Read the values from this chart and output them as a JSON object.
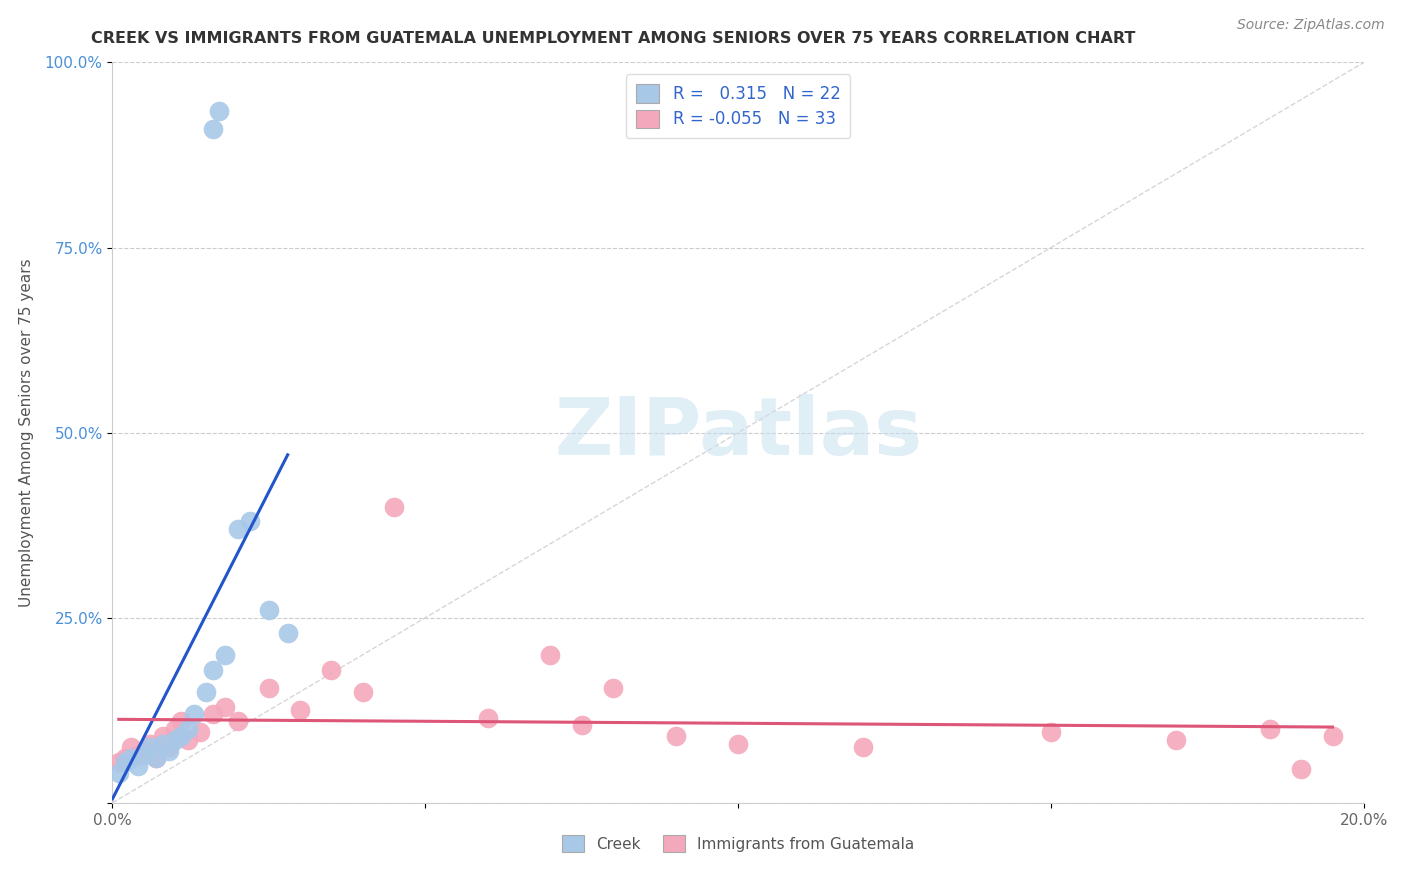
{
  "title": "CREEK VS IMMIGRANTS FROM GUATEMALA UNEMPLOYMENT AMONG SENIORS OVER 75 YEARS CORRELATION CHART",
  "source": "Source: ZipAtlas.com",
  "ylabel": "Unemployment Among Seniors over 75 years",
  "xlim": [
    0.0,
    0.2
  ],
  "ylim": [
    0.0,
    1.0
  ],
  "xticks": [
    0.0,
    0.05,
    0.1,
    0.15,
    0.2
  ],
  "xticklabels": [
    "0.0%",
    "",
    "",
    "",
    "20.0%"
  ],
  "yticks": [
    0.0,
    0.25,
    0.5,
    0.75,
    1.0
  ],
  "yticklabels": [
    "",
    "25.0%",
    "50.0%",
    "75.0%",
    "100.0%"
  ],
  "creek_color": "#a8c8e8",
  "guatemala_color": "#f4a8bc",
  "creek_line_color": "#2255cc",
  "guatemala_line_color": "#dd5577",
  "ref_line_color": "#cccccc",
  "creek_R": 0.315,
  "creek_N": 22,
  "guatemala_R": -0.055,
  "guatemala_N": 33,
  "watermark_text": "ZIPatlas",
  "background_color": "#ffffff",
  "creek_x": [
    0.001,
    0.002,
    0.003,
    0.004,
    0.005,
    0.006,
    0.007,
    0.008,
    0.009,
    0.01,
    0.011,
    0.012,
    0.013,
    0.015,
    0.016,
    0.018,
    0.02,
    0.022,
    0.025,
    0.028,
    0.016,
    0.017
  ],
  "creek_y": [
    0.04,
    0.055,
    0.06,
    0.05,
    0.065,
    0.075,
    0.06,
    0.08,
    0.07,
    0.085,
    0.09,
    0.1,
    0.12,
    0.15,
    0.18,
    0.2,
    0.37,
    0.38,
    0.26,
    0.23,
    0.91,
    0.935
  ],
  "guatemala_x": [
    0.001,
    0.002,
    0.003,
    0.004,
    0.005,
    0.006,
    0.007,
    0.008,
    0.009,
    0.01,
    0.011,
    0.012,
    0.014,
    0.016,
    0.018,
    0.02,
    0.025,
    0.03,
    0.035,
    0.04,
    0.045,
    0.06,
    0.07,
    0.075,
    0.08,
    0.09,
    0.1,
    0.12,
    0.15,
    0.17,
    0.185,
    0.19,
    0.195
  ],
  "guatemala_y": [
    0.055,
    0.06,
    0.075,
    0.065,
    0.07,
    0.08,
    0.06,
    0.09,
    0.075,
    0.1,
    0.11,
    0.085,
    0.095,
    0.12,
    0.13,
    0.11,
    0.155,
    0.125,
    0.18,
    0.15,
    0.4,
    0.115,
    0.2,
    0.105,
    0.155,
    0.09,
    0.08,
    0.075,
    0.095,
    0.085,
    0.1,
    0.045,
    0.09
  ]
}
